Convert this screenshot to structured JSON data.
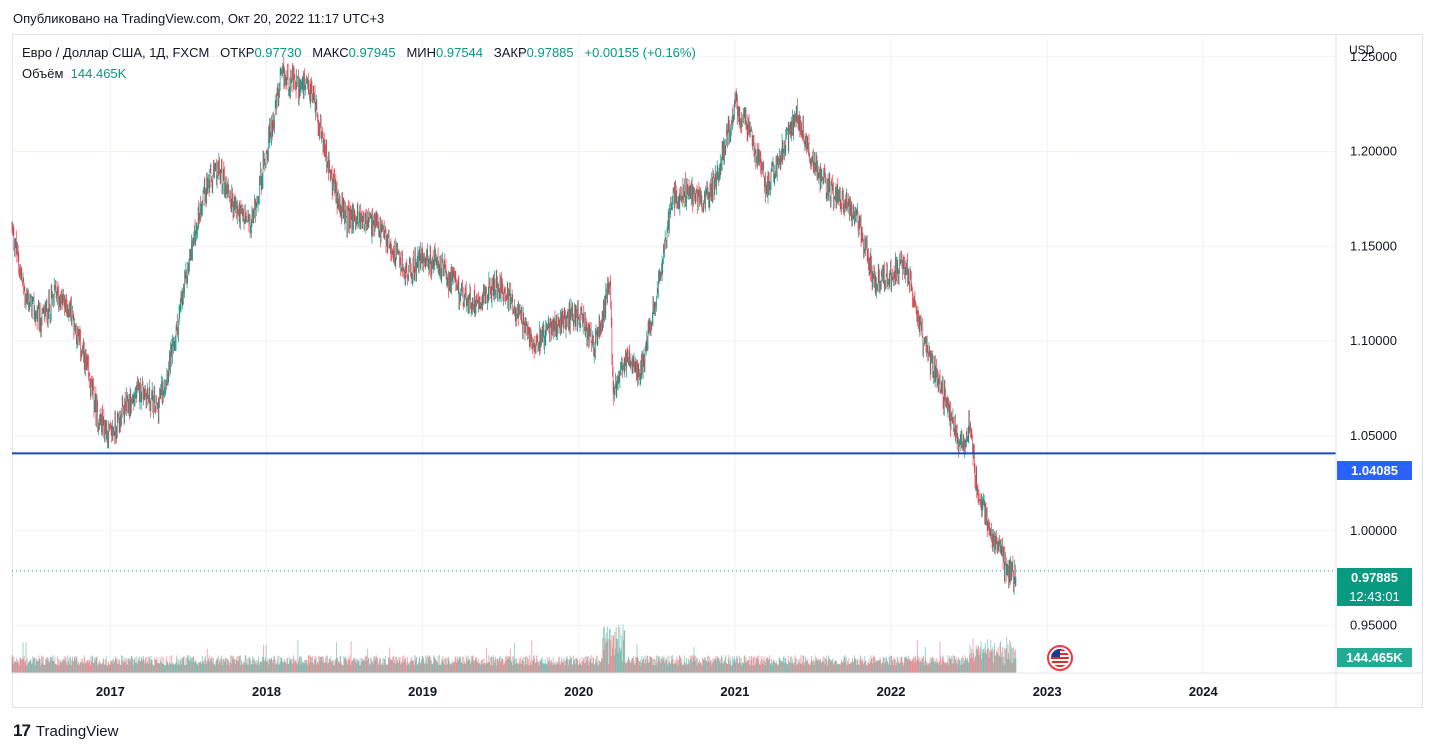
{
  "published": "Опубликовано на TradingView.com, Окт 20, 2022 11:17 UTC+3",
  "legend": {
    "symbol": "Евро / Доллар США, 1Д, FXCM",
    "open_label": "ОТКР",
    "open": "0.97730",
    "high_label": "МАКС",
    "high": "0.97945",
    "low_label": "МИН",
    "low": "0.97544",
    "close_label": "ЗАКР",
    "close": "0.97885",
    "change": "+0.00155 (+0.16%)",
    "volume_label": "Объём",
    "volume": "144.465K"
  },
  "axis": {
    "unit": "USD"
  },
  "badges": {
    "hline_value": "1.04085",
    "last_price": "0.97885",
    "countdown": "12:43:01",
    "volume": "144.465K"
  },
  "footer": {
    "brand": "TradingView",
    "logo": "17"
  },
  "colors": {
    "up": "#089981",
    "down": "#f23645",
    "hline": "#1848cc",
    "grid": "#f0f3fa"
  },
  "chart_data": {
    "type": "candlestick",
    "title": "Евро / Доллар США, 1Д, FXCM",
    "ylabel": "USD",
    "ylim": [
      0.925,
      1.262
    ],
    "yticks": [
      0.95,
      1.0,
      1.05,
      1.1,
      1.15,
      1.2,
      1.25
    ],
    "ytick_labels": [
      "0.95000",
      "1.00000",
      "1.05000",
      "1.10000",
      "1.15000",
      "1.20000",
      "1.25000"
    ],
    "xlim": [
      2016.37,
      2024.85
    ],
    "xticks": [
      2017,
      2018,
      2019,
      2020,
      2021,
      2022,
      2023,
      2024
    ],
    "xtick_labels": [
      "2017",
      "2018",
      "2019",
      "2020",
      "2021",
      "2022",
      "2023",
      "2024"
    ],
    "horizontal_line": 1.04085,
    "last_close": 0.97885,
    "price_path": [
      [
        2016.37,
        1.16
      ],
      [
        2016.45,
        1.125
      ],
      [
        2016.55,
        1.11
      ],
      [
        2016.65,
        1.125
      ],
      [
        2016.75,
        1.115
      ],
      [
        2016.85,
        1.085
      ],
      [
        2016.92,
        1.06
      ],
      [
        2017.0,
        1.05
      ],
      [
        2017.1,
        1.065
      ],
      [
        2017.2,
        1.075
      ],
      [
        2017.3,
        1.065
      ],
      [
        2017.4,
        1.095
      ],
      [
        2017.5,
        1.14
      ],
      [
        2017.6,
        1.18
      ],
      [
        2017.7,
        1.19
      ],
      [
        2017.8,
        1.17
      ],
      [
        2017.9,
        1.16
      ],
      [
        2018.0,
        1.2
      ],
      [
        2018.1,
        1.24
      ],
      [
        2018.2,
        1.235
      ],
      [
        2018.3,
        1.23
      ],
      [
        2018.4,
        1.19
      ],
      [
        2018.5,
        1.165
      ],
      [
        2018.6,
        1.165
      ],
      [
        2018.7,
        1.16
      ],
      [
        2018.8,
        1.15
      ],
      [
        2018.9,
        1.135
      ],
      [
        2019.0,
        1.145
      ],
      [
        2019.1,
        1.14
      ],
      [
        2019.2,
        1.13
      ],
      [
        2019.3,
        1.12
      ],
      [
        2019.4,
        1.125
      ],
      [
        2019.5,
        1.13
      ],
      [
        2019.6,
        1.115
      ],
      [
        2019.7,
        1.1
      ],
      [
        2019.8,
        1.105
      ],
      [
        2019.9,
        1.11
      ],
      [
        2020.0,
        1.115
      ],
      [
        2020.1,
        1.095
      ],
      [
        2020.2,
        1.13
      ],
      [
        2020.22,
        1.075
      ],
      [
        2020.3,
        1.09
      ],
      [
        2020.4,
        1.085
      ],
      [
        2020.5,
        1.125
      ],
      [
        2020.6,
        1.175
      ],
      [
        2020.7,
        1.18
      ],
      [
        2020.8,
        1.17
      ],
      [
        2020.9,
        1.19
      ],
      [
        2021.0,
        1.225
      ],
      [
        2021.1,
        1.21
      ],
      [
        2021.2,
        1.18
      ],
      [
        2021.3,
        1.2
      ],
      [
        2021.4,
        1.22
      ],
      [
        2021.5,
        1.195
      ],
      [
        2021.6,
        1.18
      ],
      [
        2021.7,
        1.175
      ],
      [
        2021.8,
        1.16
      ],
      [
        2021.9,
        1.13
      ],
      [
        2022.0,
        1.135
      ],
      [
        2022.1,
        1.14
      ],
      [
        2022.2,
        1.1
      ],
      [
        2022.3,
        1.08
      ],
      [
        2022.4,
        1.055
      ],
      [
        2022.45,
        1.045
      ],
      [
        2022.5,
        1.055
      ],
      [
        2022.55,
        1.025
      ],
      [
        2022.6,
        1.01
      ],
      [
        2022.65,
        0.995
      ],
      [
        2022.7,
        0.99
      ],
      [
        2022.75,
        0.975
      ],
      [
        2022.8,
        0.978
      ]
    ],
    "volume_series": {
      "ylim": [
        0,
        60000
      ],
      "note": "volume bars at bottom of pane; spike around 2020.2 and 2022.5",
      "last": "144.465K"
    }
  }
}
